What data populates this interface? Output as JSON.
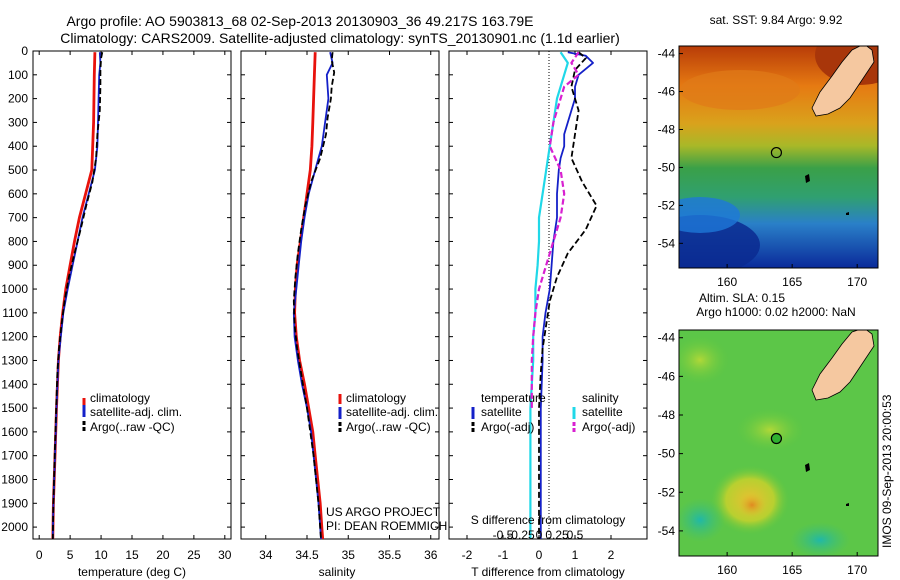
{
  "header": {
    "line1": "Argo profile: AO 5903813_68 02-Sep-2013 20130903_36 49.217S 163.79E",
    "line2": "Climatology: CARS2009. Satellite-adjusted climatology: synTS_20130901.nc (1.1d earlier)"
  },
  "colors": {
    "climatology": "#e8120c",
    "satellite": "#1420c8",
    "argo": "#000000",
    "satellite_s": "#20d8e8",
    "argo_s": "#d820d0"
  },
  "chart_data": [
    {
      "id": "temperature",
      "type": "line",
      "xlabel": "temperature (deg C)",
      "xlim": [
        -1,
        31
      ],
      "xticks": [
        0,
        5,
        10,
        15,
        20,
        25,
        30
      ],
      "ylim": [
        2050,
        0
      ],
      "yticks": [
        0,
        100,
        200,
        300,
        400,
        500,
        600,
        700,
        800,
        900,
        1000,
        1100,
        1200,
        1300,
        1400,
        1500,
        1600,
        1700,
        1800,
        1900,
        2000
      ],
      "legend": [
        "climatology",
        "satellite-adj. clim.",
        "Argo(..raw -QC)"
      ],
      "series": [
        {
          "name": "climatology",
          "style": "climatology",
          "depth": [
            5,
            100,
            300,
            500,
            600,
            700,
            800,
            900,
            1000,
            1100,
            1200,
            1300,
            1500,
            1700,
            1900,
            2050
          ],
          "values": [
            9.0,
            8.9,
            8.8,
            8.5,
            7.5,
            6.5,
            5.7,
            5.0,
            4.3,
            3.8,
            3.4,
            3.1,
            2.8,
            2.55,
            2.3,
            2.2
          ]
        },
        {
          "name": "satellite-adj. clim.",
          "style": "satellite",
          "depth": [
            5,
            50,
            100,
            200,
            300,
            400,
            500,
            600,
            700,
            800,
            900,
            1000,
            1100,
            1200,
            1300,
            1500,
            1700,
            1900,
            2050
          ],
          "values": [
            9.8,
            9.9,
            9.7,
            9.6,
            9.5,
            9.4,
            9.0,
            8.0,
            7.0,
            6.2,
            5.4,
            4.6,
            3.9,
            3.5,
            3.1,
            2.8,
            2.55,
            2.3,
            2.2
          ]
        },
        {
          "name": "Argo(..raw -QC)",
          "style": "argo",
          "depth": [
            5,
            30,
            80,
            150,
            250,
            350,
            450,
            550,
            650,
            750,
            850,
            950,
            1050,
            1150,
            1250,
            1350,
            1500,
            1700,
            1900,
            2050
          ],
          "values": [
            10.2,
            10.0,
            9.9,
            9.9,
            9.8,
            9.4,
            9.2,
            8.6,
            7.6,
            6.7,
            5.7,
            4.8,
            4.1,
            3.6,
            3.2,
            2.95,
            2.75,
            2.5,
            2.3,
            2.2
          ]
        }
      ]
    },
    {
      "id": "salinity",
      "type": "line",
      "xlabel": "salinity",
      "xlim": [
        33.7,
        36.1
      ],
      "xticks": [
        34,
        34.5,
        35,
        35.5,
        36
      ],
      "xtick_labels": [
        "34",
        "34.5",
        "35",
        "35.5",
        "36"
      ],
      "ylim": [
        2050,
        0
      ],
      "legend": [
        "climatology",
        "satellite-adj. clim.",
        "Argo(..raw -QC)"
      ],
      "annotation": [
        "US ARGO PROJECT",
        "PI: DEAN ROEMMICH"
      ],
      "series": [
        {
          "name": "climatology",
          "style": "climatology",
          "depth": [
            5,
            100,
            200,
            300,
            400,
            500,
            600,
            700,
            800,
            900,
            1000,
            1100,
            1200,
            1300,
            1400,
            1500,
            1600,
            1700,
            1800,
            1900,
            2000,
            2050
          ],
          "values": [
            34.6,
            34.59,
            34.58,
            34.57,
            34.56,
            34.54,
            34.5,
            34.46,
            34.42,
            34.38,
            34.36,
            34.35,
            34.37,
            34.41,
            34.47,
            34.52,
            34.57,
            34.6,
            34.63,
            34.66,
            34.68,
            34.69
          ]
        },
        {
          "name": "satellite-adj. clim.",
          "style": "satellite",
          "depth": [
            5,
            50,
            100,
            200,
            300,
            400,
            500,
            600,
            700,
            800,
            900,
            1000,
            1100,
            1200,
            1300,
            1400,
            1500,
            1600,
            1700,
            1800,
            1900,
            2000,
            2050
          ],
          "values": [
            34.78,
            34.81,
            34.74,
            34.76,
            34.72,
            34.68,
            34.6,
            34.52,
            34.47,
            34.43,
            34.4,
            34.37,
            34.34,
            34.35,
            34.39,
            34.44,
            34.5,
            34.55,
            34.58,
            34.61,
            34.64,
            34.66,
            34.67
          ]
        },
        {
          "name": "Argo(..raw -QC)",
          "style": "argo",
          "depth": [
            5,
            40,
            90,
            150,
            200,
            280,
            350,
            450,
            550,
            650,
            750,
            850,
            950,
            1050,
            1150,
            1250,
            1400,
            1500,
            1700,
            1900,
            2050
          ],
          "values": [
            34.81,
            34.8,
            34.83,
            34.8,
            34.79,
            34.75,
            34.73,
            34.66,
            34.55,
            34.48,
            34.43,
            34.39,
            34.36,
            34.34,
            34.35,
            34.38,
            34.45,
            34.5,
            34.58,
            34.64,
            34.67
          ]
        }
      ]
    },
    {
      "id": "difference",
      "type": "line",
      "xlabel": "T difference from climatology",
      "top_label": "S difference from climatology",
      "xlim": [
        -2.5,
        3
      ],
      "xticks": [
        -2,
        -1,
        0,
        1,
        2
      ],
      "s_ticks": [
        -0.5,
        -0.25,
        0,
        0.25,
        0.5
      ],
      "s_tick_labels": [
        "-0.5",
        "-0.25",
        "0",
        "0.25",
        "0.5"
      ],
      "ylim": [
        2050,
        0
      ],
      "legend_headers": [
        "temperature",
        "salinity"
      ],
      "legend": [
        "satellite",
        "Argo(-adj)",
        "satellite",
        "Argo(-adj)"
      ],
      "series": [
        {
          "name": "satellite",
          "style": "satellite",
          "depth": [
            5,
            20,
            50,
            100,
            150,
            200,
            250,
            300,
            350,
            400,
            450,
            500,
            600,
            700,
            800,
            900,
            1000,
            1100,
            1200,
            1300,
            1500,
            1700,
            1900,
            2050
          ],
          "values": [
            0.8,
            1.3,
            1.5,
            1.1,
            1.0,
            1.0,
            0.9,
            0.8,
            0.7,
            0.7,
            0.6,
            0.55,
            0.5,
            0.5,
            0.4,
            0.35,
            0.3,
            0.18,
            0.1,
            0.1,
            0.05,
            0.05,
            0.05,
            0.05
          ]
        },
        {
          "name": "Argo(-adj)",
          "style": "argo",
          "depth": [
            5,
            30,
            80,
            150,
            250,
            350,
            450,
            550,
            650,
            750,
            850,
            950,
            1050,
            1150,
            1250,
            1350,
            1500,
            1700,
            1900,
            2050
          ],
          "values": [
            1.1,
            1.3,
            1.0,
            0.9,
            1.1,
            1.0,
            0.9,
            1.2,
            1.6,
            1.3,
            0.8,
            0.5,
            0.3,
            0.2,
            0.1,
            0.05,
            0.0,
            0.0,
            0.0,
            0.0
          ]
        },
        {
          "name": "satellite",
          "style": "satellite_s",
          "depth": [
            5,
            50,
            100,
            150,
            200,
            300,
            400,
            500,
            600,
            700,
            800,
            900,
            1000,
            1100,
            1200,
            1300,
            1400,
            1500,
            1600,
            1700,
            1800,
            1900,
            2050
          ],
          "values": [
            0.3,
            0.4,
            0.35,
            0.3,
            0.25,
            0.2,
            0.15,
            0.1,
            0.05,
            0.0,
            0.0,
            -0.02,
            -0.05,
            -0.05,
            -0.08,
            -0.08,
            -0.1,
            -0.12,
            -0.12,
            -0.12,
            -0.12,
            -0.12,
            -0.12
          ]
        },
        {
          "name": "Argo(-adj)",
          "style": "argo_s",
          "depth": [
            5,
            50,
            100,
            150,
            200,
            300,
            400,
            500,
            600,
            700,
            800,
            900,
            1000,
            1100,
            1200,
            1300,
            1400,
            1500
          ],
          "values": [
            0.55,
            0.45,
            0.55,
            0.35,
            0.3,
            0.2,
            0.15,
            0.3,
            0.35,
            0.3,
            0.2,
            0.1,
            0.0,
            -0.05,
            -0.08,
            -0.1,
            -0.1,
            -0.1
          ]
        }
      ]
    }
  ],
  "maps": {
    "sst": {
      "title": "sat. SST: 9.84  Argo: 9.92",
      "xticks": [
        160,
        165,
        170
      ],
      "yticks": [
        -44,
        -46,
        -48,
        -50,
        -52,
        -54
      ],
      "float_lon": 163.79,
      "float_lat": -49.217
    },
    "sla": {
      "title_line1": "Altim. SLA: 0.15",
      "title_line2": "Argo h1000: 0.02 h2000: NaN",
      "xticks": [
        160,
        165,
        170
      ],
      "yticks": [
        -44,
        -46,
        -48,
        -50,
        -52,
        -54
      ],
      "float_lon": 163.79,
      "float_lat": -49.217
    }
  },
  "side_label": "IMOS 09-Sep-2013 20:00:53"
}
